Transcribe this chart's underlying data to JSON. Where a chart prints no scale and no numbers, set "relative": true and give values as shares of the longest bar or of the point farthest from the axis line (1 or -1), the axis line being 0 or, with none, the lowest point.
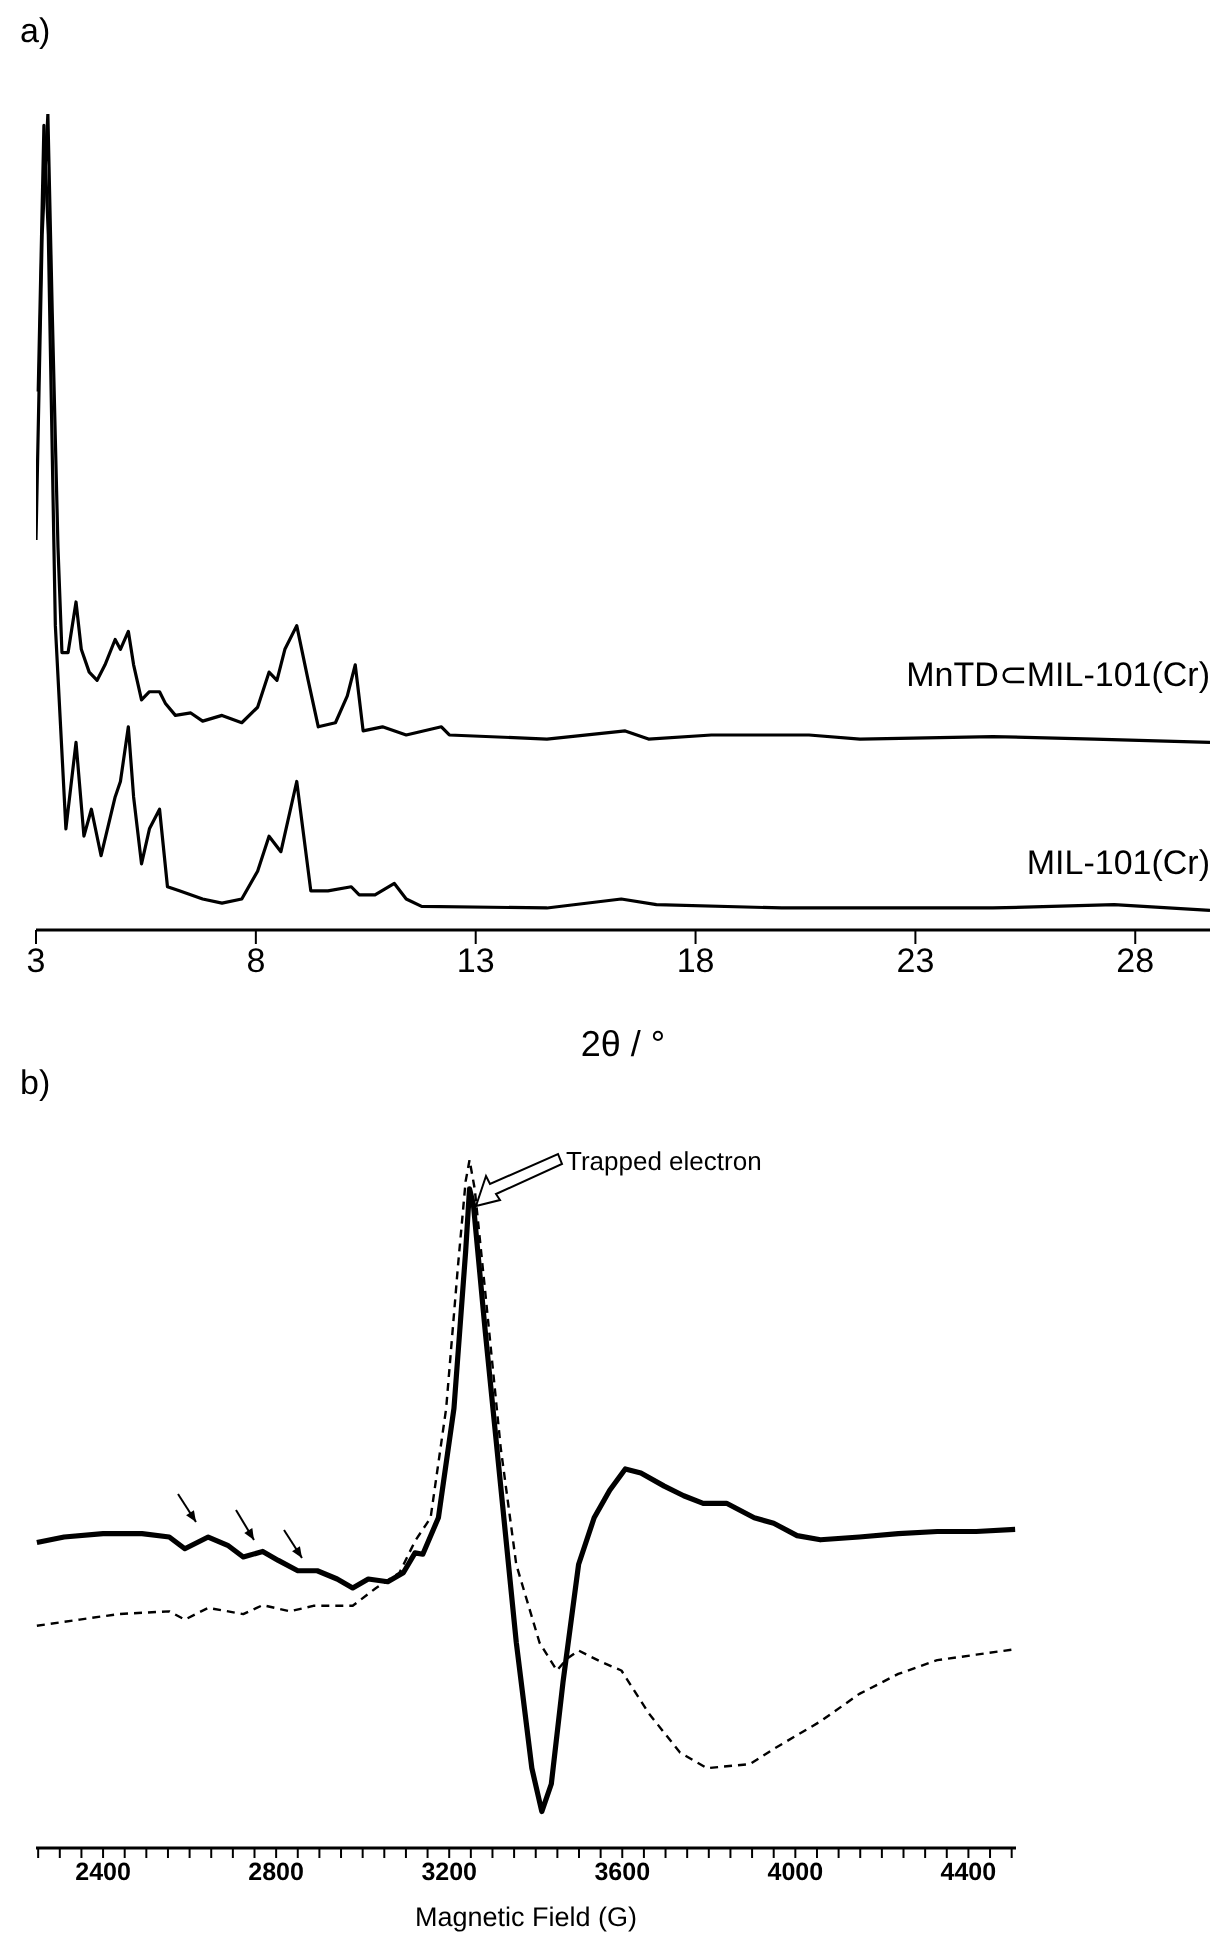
{
  "chart_data": [
    {
      "type": "line",
      "title": "a)",
      "xlabel": "2θ / °",
      "relative": true,
      "marker": "none",
      "xlim": [
        3,
        29.7
      ],
      "xticks": [
        3,
        8,
        13,
        18,
        23,
        28
      ],
      "series": [
        {
          "name": "MnTD⊂MIL-101(Cr)",
          "color": "#000000",
          "line_style": "solid",
          "x": [
            3.0,
            3.14,
            3.27,
            3.37,
            3.5,
            3.59,
            3.73,
            3.91,
            4.03,
            4.21,
            4.39,
            4.57,
            4.8,
            4.92,
            5.1,
            5.22,
            5.4,
            5.58,
            5.81,
            5.94,
            6.17,
            6.52,
            6.79,
            7.23,
            7.68,
            8.04,
            8.3,
            8.48,
            8.66,
            8.93,
            9.19,
            9.42,
            9.81,
            10.08,
            10.26,
            10.44,
            10.88,
            11.42,
            12.22,
            12.4,
            14.62,
            16.4,
            16.93,
            18.36,
            20.58,
            21.74,
            24.76,
            27.07,
            29.7
          ],
          "values": [
            0.478,
            0.852,
            1.0,
            0.756,
            0.469,
            0.34,
            0.34,
            0.402,
            0.344,
            0.316,
            0.306,
            0.325,
            0.356,
            0.344,
            0.366,
            0.325,
            0.282,
            0.292,
            0.292,
            0.278,
            0.263,
            0.266,
            0.256,
            0.263,
            0.254,
            0.273,
            0.316,
            0.306,
            0.344,
            0.373,
            0.306,
            0.249,
            0.254,
            0.287,
            0.325,
            0.244,
            0.249,
            0.239,
            0.249,
            0.239,
            0.234,
            0.244,
            0.234,
            0.239,
            0.239,
            0.234,
            0.237,
            0.234,
            0.23
          ]
        },
        {
          "name": "MIL-101(Cr)",
          "color": "#000000",
          "line_style": "solid",
          "x": [
            3.05,
            3.18,
            3.28,
            3.44,
            3.68,
            3.91,
            4.09,
            4.26,
            4.48,
            4.8,
            4.92,
            5.1,
            5.22,
            5.4,
            5.58,
            5.81,
            5.99,
            6.26,
            6.79,
            7.23,
            7.68,
            8.04,
            8.3,
            8.57,
            8.93,
            9.25,
            9.64,
            10.17,
            10.35,
            10.71,
            11.15,
            11.42,
            11.77,
            14.62,
            16.31,
            17.11,
            19.96,
            24.76,
            27.52,
            29.7
          ],
          "values": [
            0.66,
            0.986,
            0.852,
            0.373,
            0.124,
            0.23,
            0.115,
            0.148,
            0.091,
            0.163,
            0.182,
            0.249,
            0.163,
            0.081,
            0.124,
            0.148,
            0.053,
            0.048,
            0.038,
            0.033,
            0.038,
            0.072,
            0.115,
            0.096,
            0.182,
            0.048,
            0.048,
            0.053,
            0.043,
            0.043,
            0.057,
            0.038,
            0.029,
            0.027,
            0.038,
            0.031,
            0.027,
            0.027,
            0.031,
            0.024
          ]
        }
      ]
    },
    {
      "type": "line",
      "title": "b)",
      "xlabel": "Magnetic Field (G)",
      "relative": true,
      "marker": "none",
      "xlim": [
        2245,
        4510
      ],
      "xticks": [
        {
          "value": 2250,
          "label": null
        },
        {
          "value": 2300,
          "label": null
        },
        {
          "value": 2350,
          "label": null
        },
        2400,
        {
          "value": 2450,
          "label": null
        },
        {
          "value": 2500,
          "label": null
        },
        {
          "value": 2550,
          "label": null
        },
        {
          "value": 2600,
          "label": null
        },
        {
          "value": 2650,
          "label": null
        },
        {
          "value": 2700,
          "label": null
        },
        {
          "value": 2750,
          "label": null
        },
        2800,
        {
          "value": 2850,
          "label": null
        },
        {
          "value": 2900,
          "label": null
        },
        {
          "value": 2950,
          "label": null
        },
        {
          "value": 3000,
          "label": null
        },
        {
          "value": 3050,
          "label": null
        },
        {
          "value": 3100,
          "label": null
        },
        {
          "value": 3150,
          "label": null
        },
        3200,
        {
          "value": 3250,
          "label": null
        },
        {
          "value": 3300,
          "label": null
        },
        {
          "value": 3350,
          "label": null
        },
        {
          "value": 3400,
          "label": null
        },
        {
          "value": 3450,
          "label": null
        },
        {
          "value": 3500,
          "label": null
        },
        {
          "value": 3550,
          "label": null
        },
        3600,
        {
          "value": 3650,
          "label": null
        },
        {
          "value": 3700,
          "label": null
        },
        {
          "value": 3750,
          "label": null
        },
        {
          "value": 3800,
          "label": null
        },
        {
          "value": 3850,
          "label": null
        },
        {
          "value": 3900,
          "label": null
        },
        {
          "value": 3950,
          "label": null
        },
        4000,
        {
          "value": 4050,
          "label": null
        },
        {
          "value": 4100,
          "label": null
        },
        {
          "value": 4150,
          "label": null
        },
        {
          "value": 4200,
          "label": null
        },
        {
          "value": 4250,
          "label": null
        },
        {
          "value": 4300,
          "label": null
        },
        {
          "value": 4350,
          "label": null
        },
        4400,
        {
          "value": 4450,
          "label": null
        },
        {
          "value": 4500,
          "label": null
        }
      ],
      "annotations": [
        "Trapped electron"
      ],
      "series": [
        {
          "color": "#000000",
          "line_style": "solid",
          "x": [
            2247,
            2310,
            2400,
            2490,
            2553,
            2589,
            2643,
            2688,
            2724,
            2769,
            2805,
            2850,
            2895,
            2941,
            2977,
            3013,
            3058,
            3094,
            3121,
            3139,
            3175,
            3211,
            3238,
            3247,
            3256,
            3283,
            3319,
            3355,
            3391,
            3414,
            3436,
            3463,
            3499,
            3535,
            3571,
            3607,
            3643,
            3697,
            3742,
            3787,
            3841,
            3905,
            3950,
            4004,
            4058,
            4148,
            4238,
            4328,
            4418,
            4508
          ],
          "values": [
            0.444,
            0.452,
            0.457,
            0.457,
            0.452,
            0.435,
            0.452,
            0.44,
            0.423,
            0.431,
            0.418,
            0.403,
            0.403,
            0.391,
            0.378,
            0.391,
            0.387,
            0.4,
            0.429,
            0.427,
            0.48,
            0.639,
            0.867,
            0.958,
            0.935,
            0.753,
            0.526,
            0.299,
            0.116,
            0.053,
            0.093,
            0.241,
            0.412,
            0.48,
            0.52,
            0.551,
            0.545,
            0.526,
            0.512,
            0.501,
            0.501,
            0.48,
            0.472,
            0.454,
            0.448,
            0.452,
            0.457,
            0.46,
            0.46,
            0.463
          ]
        },
        {
          "color": "#000000",
          "line_style": "dashed",
          "x": [
            2247,
            2346,
            2436,
            2553,
            2589,
            2643,
            2724,
            2769,
            2832,
            2886,
            2977,
            3031,
            3085,
            3121,
            3157,
            3193,
            3220,
            3238,
            3247,
            3259,
            3283,
            3319,
            3355,
            3409,
            3449,
            3472,
            3499,
            3553,
            3598,
            3661,
            3733,
            3796,
            3895,
            3950,
            4058,
            4148,
            4238,
            4328,
            4418,
            4508
          ],
          "values": [
            0.323,
            0.332,
            0.34,
            0.344,
            0.332,
            0.349,
            0.34,
            0.353,
            0.344,
            0.352,
            0.352,
            0.378,
            0.4,
            0.446,
            0.48,
            0.639,
            0.844,
            0.969,
            1.0,
            0.958,
            0.81,
            0.582,
            0.412,
            0.298,
            0.258,
            0.275,
            0.287,
            0.27,
            0.258,
            0.196,
            0.139,
            0.116,
            0.122,
            0.144,
            0.184,
            0.224,
            0.253,
            0.273,
            0.281,
            0.289
          ]
        }
      ]
    }
  ]
}
